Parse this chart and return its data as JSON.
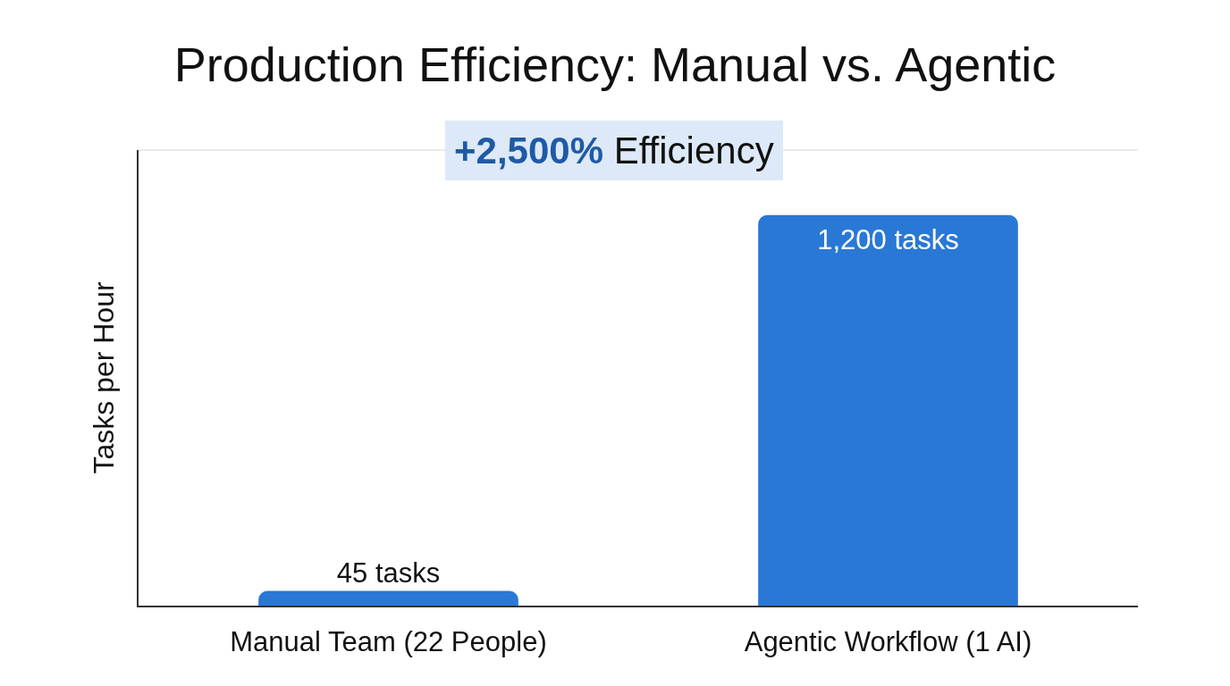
{
  "chart_data": {
    "type": "bar",
    "title": "Production Efficiency: Manual vs. Agentic",
    "ylabel": "Tasks per Hour",
    "categories": [
      "Manual Team (22 People)",
      "Agentic Workflow (1 AI)"
    ],
    "values": [
      45,
      1200
    ],
    "value_labels": [
      "45 tasks",
      "1,200 tasks"
    ],
    "color": "#2a78d6",
    "ylim": [
      0,
      1400
    ],
    "tick_labels": "x",
    "annotations": [
      "+2,500% Efficiency"
    ]
  }
}
